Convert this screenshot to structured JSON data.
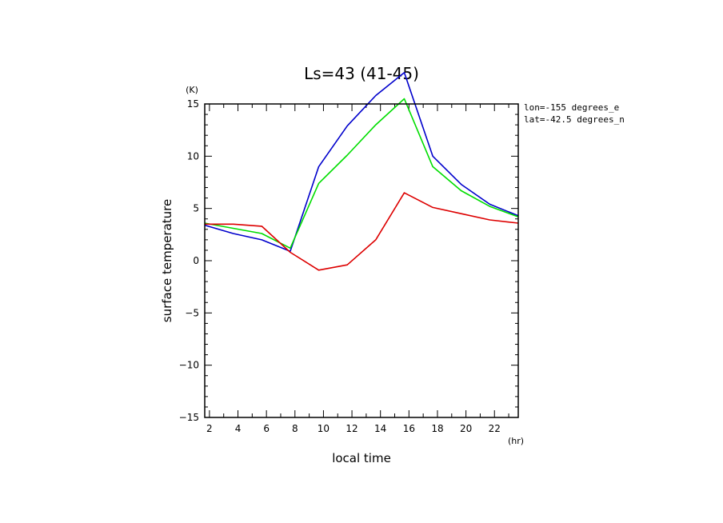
{
  "chart_data": {
    "type": "line",
    "title": "Ls=43 (41-45)",
    "xlabel": "local time",
    "ylabel": "surface temperature",
    "x_unit": "(hr)",
    "y_unit": "(K)",
    "xlim": [
      1.67,
      23.67
    ],
    "ylim": [
      -15,
      15
    ],
    "x_ticks": [
      2,
      4,
      6,
      8,
      10,
      12,
      14,
      16,
      18,
      20,
      22
    ],
    "y_ticks": [
      -15,
      -10,
      -5,
      0,
      5,
      10,
      15
    ],
    "y_tick_labels": [
      "−15",
      "−10",
      "−5",
      "0",
      "5",
      "10",
      "15"
    ],
    "x": [
      1.67,
      3.67,
      5.67,
      7.67,
      9.67,
      11.67,
      13.67,
      15.67,
      17.67,
      19.67,
      21.67,
      23.67
    ],
    "series": [
      {
        "color": "#0000cc",
        "values": [
          3.4,
          2.6,
          2.0,
          0.9,
          9.0,
          12.9,
          15.8,
          18.0,
          10.0,
          7.3,
          5.4,
          4.3
        ]
      },
      {
        "color": "#00dd00",
        "values": [
          3.6,
          3.1,
          2.6,
          1.2,
          7.4,
          10.1,
          13.0,
          15.5,
          9.0,
          6.7,
          5.2,
          4.2
        ]
      },
      {
        "color": "#dd0000",
        "values": [
          3.5,
          3.5,
          3.3,
          0.8,
          -0.9,
          -0.4,
          2.0,
          6.5,
          5.1,
          4.5,
          3.9,
          3.6
        ]
      }
    ],
    "annotations": [
      "lon=-155 degrees_e",
      "lat=-42.5 degrees_n"
    ],
    "grid": false,
    "legend": "none"
  }
}
